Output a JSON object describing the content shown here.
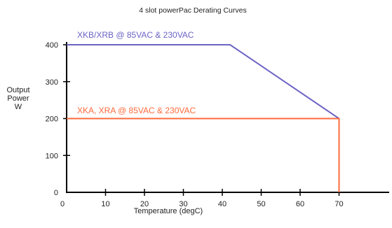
{
  "chart_data": {
    "type": "line",
    "title": "4 slot powerPac Derating Curves",
    "xlabel": "Temperature (degC)",
    "ylabel": [
      "Output",
      "Power",
      "W"
    ],
    "xlim": [
      0,
      80
    ],
    "ylim": [
      0,
      400
    ],
    "x_ticks": [
      0,
      10,
      20,
      30,
      40,
      50,
      60,
      70
    ],
    "y_ticks": [
      0,
      100,
      200,
      300,
      400
    ],
    "grid": false,
    "series": [
      {
        "name": "XKB/XRB @ 85VAC & 230VAC",
        "color": "#6b63c4",
        "x": [
          0,
          42,
          70,
          70
        ],
        "y": [
          400,
          400,
          200,
          0
        ]
      },
      {
        "name": "XKA, XRA @ 85VAC & 230VAC",
        "color": "#ff6a3c",
        "x": [
          0,
          70,
          70
        ],
        "y": [
          200,
          200,
          0
        ]
      }
    ]
  }
}
